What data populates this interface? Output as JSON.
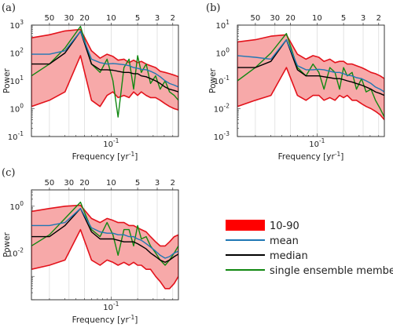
{
  "figure": {
    "legend": {
      "entries": [
        {
          "label": "10-90",
          "kind": "band",
          "color": "#ff0000",
          "fill": "#ff0000"
        },
        {
          "label": "mean",
          "kind": "line",
          "color": "#1f77b4"
        },
        {
          "label": "median",
          "kind": "line",
          "color": "#000000"
        },
        {
          "label": "single ensemble member",
          "kind": "line",
          "color": "#118811"
        }
      ]
    },
    "colors": {
      "band_fill": "#f7a9a9",
      "band_edge": "#e3121b",
      "mean": "#1f77b4",
      "median": "#000000",
      "member": "#118811",
      "grid": "#d8d8d8"
    }
  },
  "chart_data": [
    {
      "panel": "(a)",
      "type": "line",
      "xlabel": "Frequency [yr",
      "xlabel_sup": "-1",
      "xlabel_end": "]",
      "ylabel": "Power",
      "x_scale": "log",
      "y_scale": "log",
      "xlim": [
        0.0125,
        0.58
      ],
      "ylim": [
        0.1,
        1000
      ],
      "x_ticks": [
        {
          "value": 0.1,
          "label": "10",
          "sup": "-1"
        }
      ],
      "y_ticks": [
        {
          "value": 0.1,
          "label": "10",
          "sup": "-1"
        },
        {
          "value": 1,
          "label": "10",
          "sup": "0"
        },
        {
          "value": 10,
          "label": "10",
          "sup": "1"
        },
        {
          "value": 100,
          "label": "10",
          "sup": "2"
        },
        {
          "value": 1000,
          "label": "10",
          "sup": "3"
        }
      ],
      "period_ticks": [
        {
          "period": 50,
          "label": "50"
        },
        {
          "period": 30,
          "label": "30"
        },
        {
          "period": 20,
          "label": "20"
        },
        {
          "period": 10,
          "label": "10"
        },
        {
          "period": 5,
          "label": "5"
        },
        {
          "period": 3,
          "label": "3"
        },
        {
          "period": 2,
          "label": "2"
        }
      ],
      "x": [
        0.0125,
        0.02,
        0.03,
        0.045,
        0.06,
        0.075,
        0.09,
        0.105,
        0.12,
        0.14,
        0.16,
        0.18,
        0.2,
        0.22,
        0.25,
        0.28,
        0.32,
        0.36,
        0.41,
        0.46,
        0.52,
        0.58
      ],
      "series": [
        {
          "role": "band_upper",
          "values": [
            350,
            450,
            620,
            700,
            120,
            65,
            90,
            75,
            55,
            60,
            45,
            55,
            45,
            50,
            40,
            35,
            30,
            22,
            20,
            18,
            16,
            14
          ]
        },
        {
          "role": "band_lower",
          "values": [
            1.2,
            2.0,
            4.0,
            80,
            2.0,
            1.2,
            3.0,
            4.0,
            2.5,
            3.0,
            2.5,
            4.0,
            3.0,
            4.0,
            3.0,
            2.5,
            2.5,
            2.0,
            1.5,
            1.2,
            1.0,
            0.9
          ]
        },
        {
          "role": "mean",
          "values": [
            90,
            90,
            120,
            600,
            60,
            45,
            40,
            42,
            40,
            38,
            35,
            30,
            28,
            26,
            25,
            22,
            18,
            14,
            10,
            8,
            7,
            6
          ]
        },
        {
          "role": "median",
          "values": [
            40,
            40,
            100,
            600,
            40,
            25,
            25,
            24,
            22,
            20,
            20,
            18,
            18,
            15,
            14,
            12,
            10,
            8,
            6,
            5,
            4.5,
            4.0
          ]
        },
        {
          "role": "member",
          "values": [
            15,
            40,
            150,
            900,
            40,
            20,
            60,
            10,
            0.5,
            30,
            60,
            5,
            80,
            20,
            40,
            8,
            15,
            5,
            10,
            4,
            3,
            2
          ]
        }
      ]
    },
    {
      "panel": "(b)",
      "type": "line",
      "xlabel": "Frequency [yr",
      "xlabel_sup": "-1",
      "xlabel_end": "]",
      "ylabel": "Power",
      "x_scale": "log",
      "y_scale": "log",
      "xlim": [
        0.0125,
        0.58
      ],
      "ylim": [
        0.001,
        10
      ],
      "x_ticks": [
        {
          "value": 0.1,
          "label": "10",
          "sup": "-1"
        }
      ],
      "y_ticks": [
        {
          "value": 0.001,
          "label": "10",
          "sup": "-3"
        },
        {
          "value": 0.01,
          "label": "10",
          "sup": "-2"
        },
        {
          "value": 0.1,
          "label": "10",
          "sup": "-1"
        },
        {
          "value": 1,
          "label": "10",
          "sup": "0"
        },
        {
          "value": 10,
          "label": "10",
          "sup": "1"
        }
      ],
      "period_ticks": [
        {
          "period": 50,
          "label": "50"
        },
        {
          "period": 30,
          "label": "30"
        },
        {
          "period": 20,
          "label": "20"
        },
        {
          "period": 10,
          "label": "10"
        },
        {
          "period": 5,
          "label": "5"
        },
        {
          "period": 3,
          "label": "3"
        },
        {
          "period": 2,
          "label": "2"
        }
      ],
      "x": [
        0.0125,
        0.02,
        0.03,
        0.045,
        0.06,
        0.075,
        0.09,
        0.105,
        0.12,
        0.14,
        0.16,
        0.18,
        0.2,
        0.22,
        0.25,
        0.28,
        0.32,
        0.36,
        0.41,
        0.46,
        0.52,
        0.58
      ],
      "series": [
        {
          "role": "band_upper",
          "values": [
            2.5,
            3.0,
            4.0,
            4.5,
            0.9,
            0.6,
            0.8,
            0.7,
            0.5,
            0.6,
            0.45,
            0.5,
            0.5,
            0.4,
            0.4,
            0.35,
            0.3,
            0.25,
            0.2,
            0.18,
            0.15,
            0.12
          ]
        },
        {
          "role": "band_lower",
          "values": [
            0.012,
            0.02,
            0.03,
            0.3,
            0.03,
            0.02,
            0.03,
            0.03,
            0.02,
            0.025,
            0.02,
            0.03,
            0.025,
            0.03,
            0.02,
            0.02,
            0.015,
            0.012,
            0.01,
            0.008,
            0.006,
            0.004
          ]
        },
        {
          "role": "mean",
          "values": [
            0.8,
            0.7,
            0.6,
            3.0,
            0.35,
            0.25,
            0.25,
            0.26,
            0.25,
            0.22,
            0.2,
            0.2,
            0.18,
            0.16,
            0.15,
            0.13,
            0.12,
            0.1,
            0.08,
            0.06,
            0.05,
            0.04
          ]
        },
        {
          "role": "median",
          "values": [
            0.3,
            0.3,
            0.5,
            3.0,
            0.25,
            0.15,
            0.15,
            0.15,
            0.14,
            0.13,
            0.12,
            0.12,
            0.11,
            0.1,
            0.09,
            0.08,
            0.07,
            0.06,
            0.05,
            0.04,
            0.035,
            0.03
          ]
        },
        {
          "role": "member",
          "values": [
            0.1,
            0.3,
            1.0,
            5.0,
            0.3,
            0.15,
            0.4,
            0.2,
            0.05,
            0.3,
            0.2,
            0.05,
            0.3,
            0.15,
            0.2,
            0.05,
            0.12,
            0.04,
            0.05,
            0.02,
            0.01,
            0.005
          ]
        }
      ]
    },
    {
      "panel": "(c)",
      "type": "line",
      "xlabel": "Frequency [yr",
      "xlabel_sup": "-1",
      "xlabel_end": "]",
      "ylabel": "Power",
      "x_scale": "log",
      "y_scale": "log",
      "xlim": [
        0.0125,
        0.58
      ],
      "ylim": [
        0.0001,
        5
      ],
      "x_ticks": [
        {
          "value": 0.1,
          "label": "10",
          "sup": "-1"
        }
      ],
      "y_ticks": [
        {
          "value": 0.01,
          "label": "10",
          "sup": "-2"
        },
        {
          "value": 1,
          "label": "10",
          "sup": "0"
        }
      ],
      "period_ticks": [
        {
          "period": 50,
          "label": "50"
        },
        {
          "period": 30,
          "label": "30"
        },
        {
          "period": 20,
          "label": "20"
        },
        {
          "period": 10,
          "label": "10"
        },
        {
          "period": 5,
          "label": "5"
        },
        {
          "period": 3,
          "label": "3"
        },
        {
          "period": 2,
          "label": "2"
        }
      ],
      "x": [
        0.0125,
        0.02,
        0.03,
        0.045,
        0.06,
        0.075,
        0.09,
        0.105,
        0.12,
        0.14,
        0.16,
        0.18,
        0.2,
        0.22,
        0.25,
        0.28,
        0.32,
        0.36,
        0.41,
        0.46,
        0.52,
        0.58
      ],
      "series": [
        {
          "role": "band_upper",
          "values": [
            0.6,
            0.8,
            1.0,
            1.1,
            0.3,
            0.2,
            0.3,
            0.25,
            0.2,
            0.2,
            0.15,
            0.15,
            0.12,
            0.1,
            0.08,
            0.05,
            0.03,
            0.02,
            0.02,
            0.03,
            0.05,
            0.06
          ]
        },
        {
          "role": "band_lower",
          "values": [
            0.002,
            0.003,
            0.005,
            0.1,
            0.005,
            0.003,
            0.005,
            0.004,
            0.003,
            0.004,
            0.003,
            0.004,
            0.003,
            0.003,
            0.002,
            0.002,
            0.001,
            0.0006,
            0.0003,
            0.0003,
            0.0005,
            0.001
          ]
        },
        {
          "role": "mean",
          "values": [
            0.15,
            0.15,
            0.2,
            0.8,
            0.12,
            0.08,
            0.07,
            0.07,
            0.06,
            0.06,
            0.05,
            0.05,
            0.04,
            0.035,
            0.025,
            0.018,
            0.012,
            0.008,
            0.006,
            0.007,
            0.01,
            0.012
          ]
        },
        {
          "role": "median",
          "values": [
            0.05,
            0.05,
            0.15,
            0.8,
            0.08,
            0.04,
            0.04,
            0.04,
            0.035,
            0.03,
            0.03,
            0.03,
            0.025,
            0.02,
            0.015,
            0.01,
            0.007,
            0.005,
            0.004,
            0.005,
            0.007,
            0.009
          ]
        },
        {
          "role": "member",
          "values": [
            0.02,
            0.06,
            0.3,
            1.5,
            0.1,
            0.05,
            0.2,
            0.06,
            0.008,
            0.1,
            0.1,
            0.02,
            0.15,
            0.04,
            0.05,
            0.02,
            0.01,
            0.005,
            0.003,
            0.005,
            0.01,
            0.02
          ]
        }
      ]
    }
  ]
}
